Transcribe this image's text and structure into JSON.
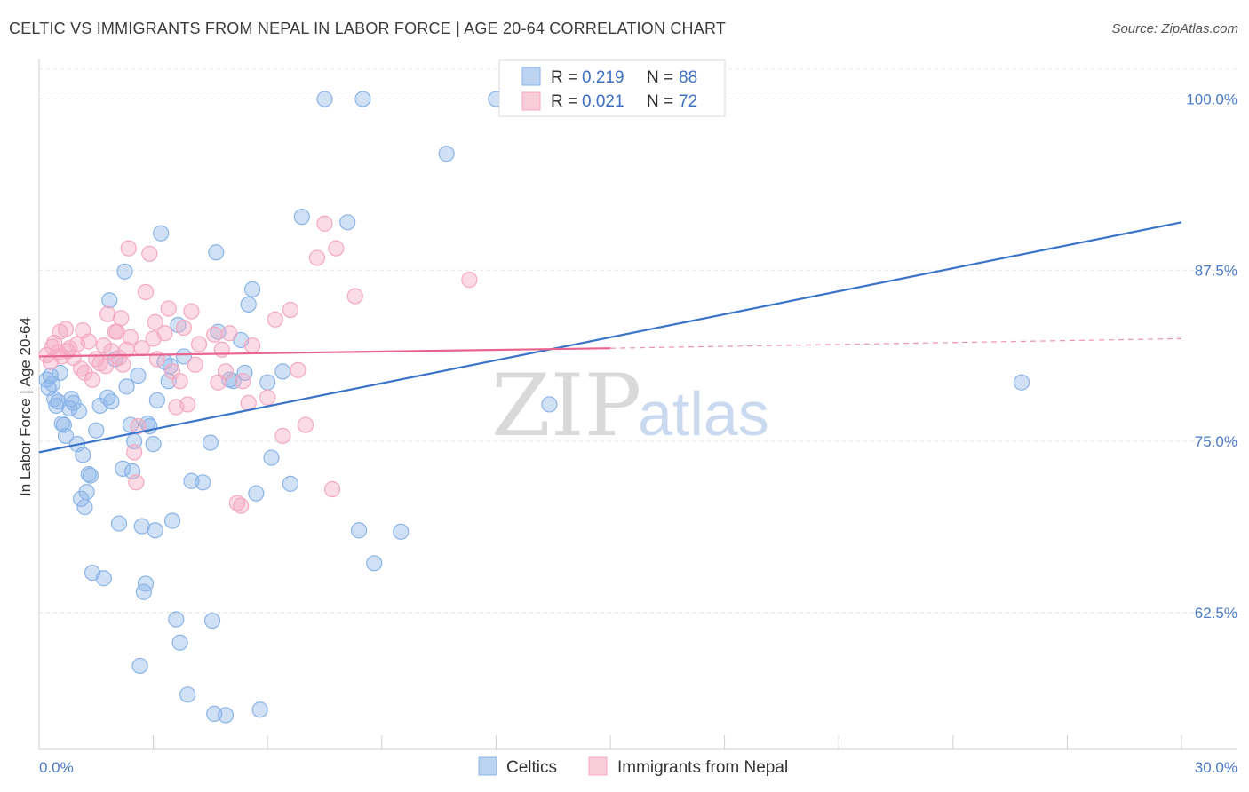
{
  "header": {
    "title": "CELTIC VS IMMIGRANTS FROM NEPAL IN LABOR FORCE | AGE 20-64 CORRELATION CHART",
    "source": "Source: ZipAtlas.com"
  },
  "chart_data": {
    "type": "scatter",
    "ylabel": "In Labor Force | Age 20-64",
    "xlim": [
      0,
      30
    ],
    "ylim": [
      52.5,
      102.5
    ],
    "x_tick_labels": [
      "0.0%",
      "30.0%"
    ],
    "y_ticks": [
      62.5,
      75.0,
      87.5,
      100.0
    ],
    "y_tick_labels": [
      "62.5%",
      "75.0%",
      "87.5%",
      "100.0%"
    ],
    "grid": true,
    "legend_position": "top-center",
    "watermark": {
      "zip": "ZIP",
      "atlas": "atlas"
    },
    "legend": [
      {
        "r_label": "R =",
        "r_value": "0.219",
        "n_label": "N =",
        "n_value": "88"
      },
      {
        "r_label": "R =",
        "r_value": "0.021",
        "n_label": "N =",
        "n_value": "72"
      }
    ],
    "series": [
      {
        "name": "Celtics",
        "color": "#8ab4e8",
        "line_color": "#3a74c9",
        "trend": {
          "x0": 0,
          "y0": 74.2,
          "x1": 30,
          "y1": 91.0
        },
        "points": [
          [
            0.2,
            79.5
          ],
          [
            0.3,
            79.8
          ],
          [
            0.25,
            78.9
          ],
          [
            0.35,
            79.2
          ],
          [
            0.4,
            78.1
          ],
          [
            0.45,
            77.6
          ],
          [
            0.5,
            77.9
          ],
          [
            0.6,
            76.3
          ],
          [
            0.65,
            76.2
          ],
          [
            0.7,
            75.4
          ],
          [
            0.8,
            77.4
          ],
          [
            0.85,
            78.1
          ],
          [
            0.9,
            77.8
          ],
          [
            1.0,
            74.8
          ],
          [
            1.05,
            77.2
          ],
          [
            1.1,
            70.8
          ],
          [
            1.2,
            70.2
          ],
          [
            1.25,
            71.3
          ],
          [
            1.3,
            72.6
          ],
          [
            1.35,
            72.5
          ],
          [
            1.4,
            65.4
          ],
          [
            1.5,
            75.8
          ],
          [
            1.6,
            77.6
          ],
          [
            1.7,
            65.0
          ],
          [
            1.8,
            78.2
          ],
          [
            1.85,
            85.3
          ],
          [
            1.9,
            77.9
          ],
          [
            2.0,
            81.0
          ],
          [
            2.1,
            69.0
          ],
          [
            2.2,
            73.0
          ],
          [
            2.25,
            87.4
          ],
          [
            2.3,
            79.0
          ],
          [
            2.4,
            76.2
          ],
          [
            2.5,
            75.0
          ],
          [
            2.6,
            79.8
          ],
          [
            2.65,
            58.6
          ],
          [
            2.7,
            68.8
          ],
          [
            2.75,
            64.0
          ],
          [
            2.8,
            64.6
          ],
          [
            2.85,
            76.3
          ],
          [
            2.9,
            76.1
          ],
          [
            3.0,
            74.8
          ],
          [
            3.05,
            68.5
          ],
          [
            3.1,
            78.0
          ],
          [
            3.2,
            90.2
          ],
          [
            3.3,
            80.8
          ],
          [
            3.4,
            79.4
          ],
          [
            3.45,
            80.5
          ],
          [
            3.5,
            69.2
          ],
          [
            3.6,
            62.0
          ],
          [
            3.65,
            83.5
          ],
          [
            3.7,
            60.3
          ],
          [
            3.8,
            81.2
          ],
          [
            3.9,
            56.5
          ],
          [
            4.0,
            72.1
          ],
          [
            4.3,
            72.0
          ],
          [
            4.5,
            74.9
          ],
          [
            4.55,
            61.9
          ],
          [
            4.6,
            55.1
          ],
          [
            4.65,
            88.8
          ],
          [
            4.7,
            83.0
          ],
          [
            4.9,
            55.0
          ],
          [
            5.0,
            79.5
          ],
          [
            5.1,
            79.4
          ],
          [
            5.3,
            82.4
          ],
          [
            5.4,
            80.0
          ],
          [
            5.5,
            85.0
          ],
          [
            5.6,
            86.1
          ],
          [
            5.7,
            71.2
          ],
          [
            5.8,
            55.4
          ],
          [
            6.0,
            79.3
          ],
          [
            6.1,
            73.8
          ],
          [
            6.4,
            80.1
          ],
          [
            6.6,
            71.9
          ],
          [
            6.9,
            91.4
          ],
          [
            7.5,
            100.0
          ],
          [
            8.1,
            91.0
          ],
          [
            8.4,
            68.5
          ],
          [
            8.5,
            100.0
          ],
          [
            8.8,
            66.1
          ],
          [
            9.5,
            68.4
          ],
          [
            10.7,
            96.0
          ],
          [
            12.0,
            100.0
          ],
          [
            13.4,
            77.7
          ],
          [
            25.8,
            79.3
          ],
          [
            1.15,
            74.0
          ],
          [
            0.55,
            80.0
          ],
          [
            2.45,
            72.8
          ]
        ]
      },
      {
        "name": "Immigrants from Nepal",
        "color": "#f4a8c0",
        "line_color": "#e8648f",
        "trend": {
          "x0": 0,
          "y0": 81.2,
          "x1": 15,
          "y1": 81.8,
          "dash_to_x": 30,
          "dash_to_y": 82.5
        },
        "points": [
          [
            0.2,
            81.3
          ],
          [
            0.3,
            80.8
          ],
          [
            0.35,
            81.9
          ],
          [
            0.4,
            82.2
          ],
          [
            0.5,
            81.5
          ],
          [
            0.55,
            83.0
          ],
          [
            0.6,
            81.2
          ],
          [
            0.7,
            83.2
          ],
          [
            0.75,
            81.6
          ],
          [
            0.8,
            81.8
          ],
          [
            0.9,
            81.1
          ],
          [
            1.0,
            82.1
          ],
          [
            1.1,
            80.3
          ],
          [
            1.15,
            83.1
          ],
          [
            1.2,
            80.0
          ],
          [
            1.3,
            82.3
          ],
          [
            1.4,
            79.5
          ],
          [
            1.5,
            81.0
          ],
          [
            1.6,
            80.7
          ],
          [
            1.7,
            82.0
          ],
          [
            1.75,
            80.5
          ],
          [
            1.8,
            84.3
          ],
          [
            1.9,
            81.6
          ],
          [
            2.0,
            83.0
          ],
          [
            2.05,
            83.0
          ],
          [
            2.1,
            81.1
          ],
          [
            2.15,
            84.0
          ],
          [
            2.2,
            80.6
          ],
          [
            2.3,
            81.7
          ],
          [
            2.35,
            89.1
          ],
          [
            2.4,
            82.6
          ],
          [
            2.5,
            74.2
          ],
          [
            2.55,
            72.0
          ],
          [
            2.6,
            76.1
          ],
          [
            2.7,
            81.8
          ],
          [
            2.8,
            85.9
          ],
          [
            2.9,
            88.7
          ],
          [
            3.0,
            82.5
          ],
          [
            3.05,
            83.7
          ],
          [
            3.1,
            81.0
          ],
          [
            3.3,
            82.9
          ],
          [
            3.4,
            84.7
          ],
          [
            3.5,
            80.1
          ],
          [
            3.6,
            77.5
          ],
          [
            3.7,
            79.4
          ],
          [
            3.8,
            83.3
          ],
          [
            3.9,
            77.7
          ],
          [
            4.0,
            84.5
          ],
          [
            4.1,
            80.6
          ],
          [
            4.2,
            82.1
          ],
          [
            4.6,
            82.8
          ],
          [
            4.7,
            79.3
          ],
          [
            4.8,
            81.7
          ],
          [
            4.9,
            80.1
          ],
          [
            5.0,
            82.9
          ],
          [
            5.2,
            70.5
          ],
          [
            5.3,
            70.3
          ],
          [
            5.35,
            79.4
          ],
          [
            5.5,
            77.8
          ],
          [
            5.6,
            82.0
          ],
          [
            6.0,
            78.2
          ],
          [
            6.2,
            83.9
          ],
          [
            6.4,
            75.4
          ],
          [
            6.6,
            84.6
          ],
          [
            6.8,
            80.2
          ],
          [
            7.0,
            76.2
          ],
          [
            7.3,
            88.4
          ],
          [
            7.5,
            90.9
          ],
          [
            7.7,
            71.5
          ],
          [
            7.8,
            89.1
          ],
          [
            8.3,
            85.6
          ],
          [
            11.3,
            86.8
          ]
        ]
      }
    ]
  }
}
